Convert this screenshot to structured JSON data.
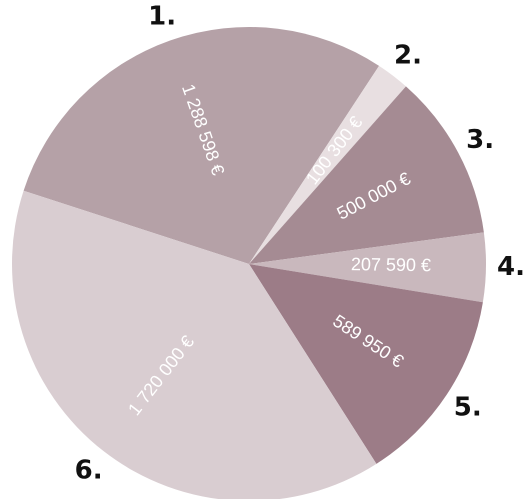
{
  "chart_data": {
    "type": "pie",
    "categories": [
      "1.",
      "2.",
      "3.",
      "4.",
      "5.",
      "6."
    ],
    "values": [
      1288598,
      100300,
      500000,
      207590,
      589950,
      1720000
    ],
    "value_labels": [
      "1 288 598 €",
      "100 300 €",
      "500 000 €",
      "207 590 €",
      "589 950 €",
      "1 720 000 €"
    ],
    "colors": [
      "#b5a1a7",
      "#e8dfe1",
      "#a58b93",
      "#c9b8bd",
      "#9c7c87",
      "#d9cdd1"
    ],
    "startangle": 288
  }
}
